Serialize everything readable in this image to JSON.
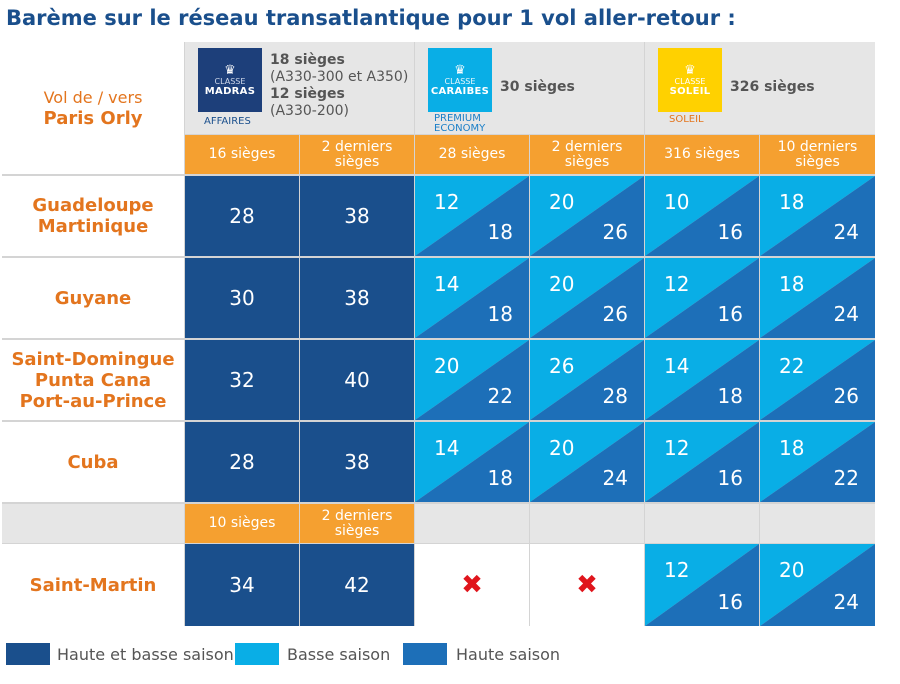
{
  "title": "Barème sur le réseau transatlantique pour 1 vol aller-retour :",
  "header": {
    "from_label": "Vol de / vers",
    "from_city": "Paris Orly",
    "madras": {
      "badge_small": "CLASSE",
      "badge_big": "MADRAS",
      "caption": "AFFAIRES",
      "line1": "18 sièges",
      "line2": "(A330-300 et A350)",
      "line3": "12 sièges",
      "line4": "(A330-200)"
    },
    "caraibes": {
      "badge_small": "CLASSE",
      "badge_big": "CARAIBES",
      "caption1": "PREMIUM",
      "caption2": "ECONOMY",
      "seats": "30 sièges"
    },
    "soleil": {
      "badge_small": "CLASSE",
      "badge_big": "SOLEIL",
      "caption": "SOLEIL",
      "seats": "326 sièges"
    },
    "subheaders": [
      "16 sièges",
      "2 derniers sièges",
      "28 sièges",
      "2 derniers sièges",
      "316 sièges",
      "10 derniers sièges"
    ],
    "saint_martin_subheaders": [
      "10 sièges",
      "2 derniers sièges"
    ]
  },
  "rows": [
    {
      "destination": "Guadeloupe\nMartinique",
      "madras": [
        "28",
        "38"
      ],
      "split": [
        [
          "12",
          "18"
        ],
        [
          "20",
          "26"
        ],
        [
          "10",
          "16"
        ],
        [
          "18",
          "24"
        ]
      ]
    },
    {
      "destination": "Guyane",
      "madras": [
        "30",
        "38"
      ],
      "split": [
        [
          "14",
          "18"
        ],
        [
          "20",
          "26"
        ],
        [
          "12",
          "16"
        ],
        [
          "18",
          "24"
        ]
      ]
    },
    {
      "destination": "Saint-Domingue\nPunta Cana\nPort-au-Prince",
      "madras": [
        "32",
        "40"
      ],
      "split": [
        [
          "20",
          "22"
        ],
        [
          "26",
          "28"
        ],
        [
          "14",
          "18"
        ],
        [
          "22",
          "26"
        ]
      ]
    },
    {
      "destination": "Cuba",
      "madras": [
        "28",
        "38"
      ],
      "split": [
        [
          "14",
          "18"
        ],
        [
          "20",
          "24"
        ],
        [
          "12",
          "16"
        ],
        [
          "18",
          "22"
        ]
      ]
    }
  ],
  "saint_martin": {
    "destination": "Saint-Martin",
    "madras": [
      "34",
      "42"
    ],
    "unavailable_symbol": "✖",
    "split": [
      [
        "12",
        "16"
      ],
      [
        "20",
        "24"
      ]
    ]
  },
  "legend": [
    {
      "label": "Haute et basse saison",
      "color": "#1a4f8c"
    },
    {
      "label": "Basse saison",
      "color": "#09aee6"
    },
    {
      "label": "Haute saison",
      "color": "#1d6fb8"
    }
  ],
  "colors": {
    "navy": "#1a4f8c",
    "low_season": "#09aee6",
    "high_season": "#1d6fb8",
    "orange": "#f5a030",
    "destination_text": "#e3751e",
    "title": "#1a4f8c"
  }
}
